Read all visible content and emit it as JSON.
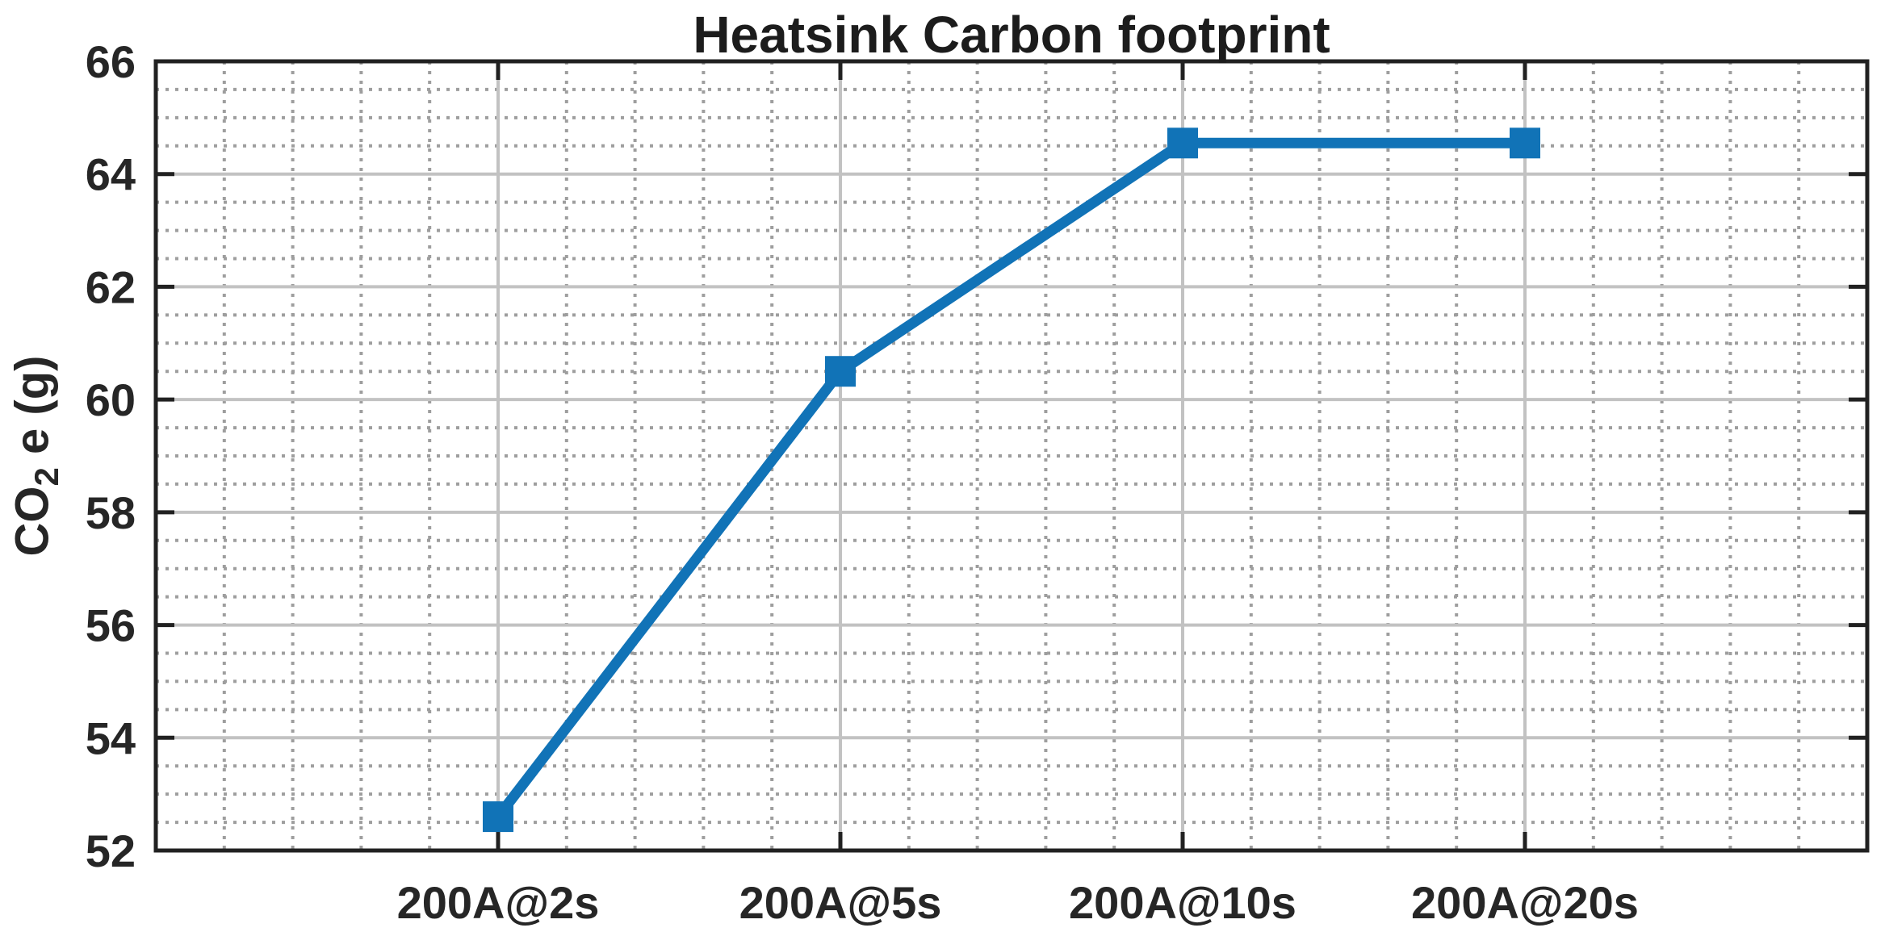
{
  "chart_data": {
    "type": "line",
    "title": "Heatsink Carbon footprint",
    "ylabel": "CO_2 e (g)",
    "ylabel_parts": {
      "base": "CO",
      "sub": "2",
      "rest": " e (g)"
    },
    "xlabel": "",
    "categories": [
      "200A@2s",
      "200A@5s",
      "200A@10s",
      "200A@20s"
    ],
    "values": [
      52.6,
      60.5,
      64.55,
      64.55
    ],
    "ylim": [
      52,
      66
    ],
    "yticks": [
      52,
      54,
      56,
      58,
      60,
      62,
      64,
      66
    ],
    "y_minor_step": 0.5,
    "x_axis_range": [
      0,
      5
    ],
    "x_tick_positions": [
      1,
      2,
      3,
      4
    ],
    "x_minor_divisions_per_interval": 5,
    "grid": {
      "major": "solid",
      "minor": "dotted"
    },
    "legend_position": "none",
    "marker": "square",
    "colors": {
      "line": "#1173b7",
      "axis": "#212121",
      "tick_label": "#262626",
      "title": "#1c1c1c",
      "major_grid": "#c2c2c2",
      "minor_grid": "#9e9e9e",
      "background": "#ffffff"
    }
  }
}
